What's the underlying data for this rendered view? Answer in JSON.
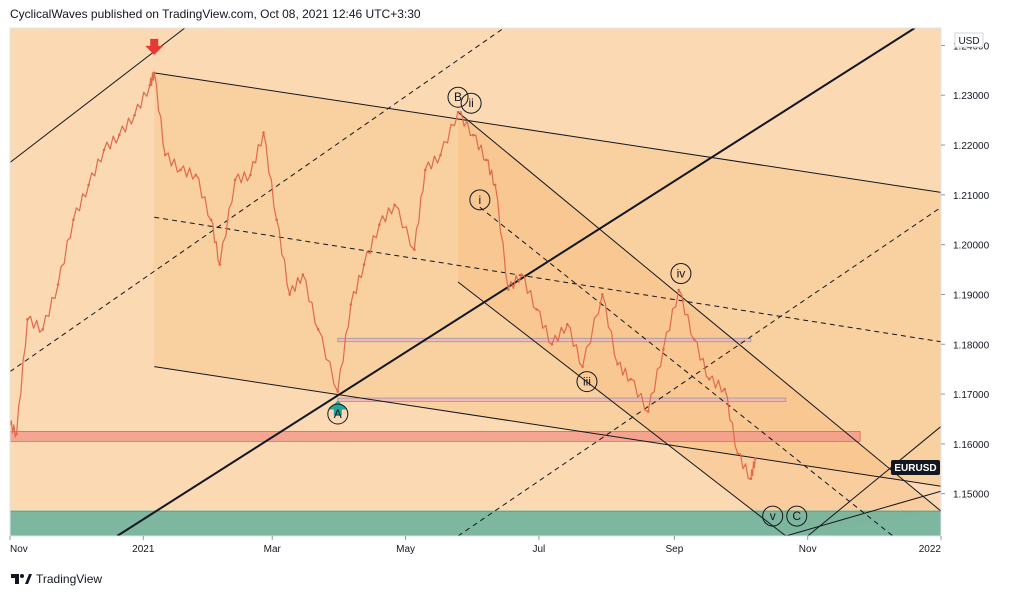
{
  "header": {
    "publisher_line": "CyclicalWaves published on TradingView.com, Oct 08, 2021 12:46 UTC+3:30"
  },
  "footer": {
    "brand": "TradingView",
    "logo_icon": "tradingview-logo-icon"
  },
  "symbol_badge": "EURUSD",
  "colors": {
    "background": "#fad9b3",
    "channel_fill": "#f8c98f",
    "price_line": "#e06a4a",
    "support_zone": "#f3998a",
    "bottom_zone": "#6fb39c",
    "arrow_down": "#e53935",
    "arrow_up": "#26a69a",
    "badge_bg": "#131722"
  },
  "chart_data": {
    "type": "line",
    "symbol": "EURUSD",
    "currency": "USD",
    "ylim": [
      1.1415,
      1.2435
    ],
    "xlim": [
      "2020-11-01",
      "2022-01-01"
    ],
    "y_ticks": [
      "1.24000",
      "1.23000",
      "1.22000",
      "1.21000",
      "1.20000",
      "1.19000",
      "1.18000",
      "1.17000",
      "1.16000",
      "1.15000"
    ],
    "y_tick_values": [
      1.24,
      1.23,
      1.22,
      1.21,
      1.2,
      1.19,
      1.18,
      1.17,
      1.16,
      1.15
    ],
    "x_ticks": [
      {
        "label": "Nov",
        "date": "2020-11-01"
      },
      {
        "label": "2021",
        "date": "2021-01-01"
      },
      {
        "label": "Mar",
        "date": "2021-03-01"
      },
      {
        "label": "May",
        "date": "2021-05-01"
      },
      {
        "label": "Jul",
        "date": "2021-07-01"
      },
      {
        "label": "Sep",
        "date": "2021-09-01"
      },
      {
        "label": "Nov",
        "date": "2021-11-01"
      },
      {
        "label": "2022",
        "date": "2022-01-01"
      }
    ],
    "price": [
      [
        "2020-11-01",
        1.164
      ],
      [
        "2020-11-04",
        1.162
      ],
      [
        "2020-11-09",
        1.185
      ],
      [
        "2020-11-16",
        1.183
      ],
      [
        "2020-11-23",
        1.192
      ],
      [
        "2020-11-30",
        1.205
      ],
      [
        "2020-12-07",
        1.212
      ],
      [
        "2020-12-14",
        1.219
      ],
      [
        "2020-12-21",
        1.222
      ],
      [
        "2020-12-28",
        1.226
      ],
      [
        "2021-01-04",
        1.232
      ],
      [
        "2021-01-06",
        1.2345
      ],
      [
        "2021-01-11",
        1.218
      ],
      [
        "2021-01-18",
        1.215
      ],
      [
        "2021-01-25",
        1.214
      ],
      [
        "2021-02-01",
        1.205
      ],
      [
        "2021-02-05",
        1.196
      ],
      [
        "2021-02-12",
        1.213
      ],
      [
        "2021-02-19",
        1.214
      ],
      [
        "2021-02-25",
        1.2225
      ],
      [
        "2021-03-03",
        1.205
      ],
      [
        "2021-03-09",
        1.19
      ],
      [
        "2021-03-15",
        1.194
      ],
      [
        "2021-03-22",
        1.183
      ],
      [
        "2021-03-31",
        1.1705
      ],
      [
        "2021-04-06",
        1.188
      ],
      [
        "2021-04-12",
        1.196
      ],
      [
        "2021-04-19",
        1.204
      ],
      [
        "2021-04-26",
        1.208
      ],
      [
        "2021-05-05",
        1.199
      ],
      [
        "2021-05-10",
        1.215
      ],
      [
        "2021-05-17",
        1.218
      ],
      [
        "2021-05-25",
        1.2266
      ],
      [
        "2021-06-01",
        1.222
      ],
      [
        "2021-06-07",
        1.217
      ],
      [
        "2021-06-11",
        1.212
      ],
      [
        "2021-06-17",
        1.191
      ],
      [
        "2021-06-23",
        1.194
      ],
      [
        "2021-06-30",
        1.187
      ],
      [
        "2021-07-07",
        1.18
      ],
      [
        "2021-07-14",
        1.184
      ],
      [
        "2021-07-21",
        1.1755
      ],
      [
        "2021-07-30",
        1.19
      ],
      [
        "2021-08-06",
        1.176
      ],
      [
        "2021-08-12",
        1.173
      ],
      [
        "2021-08-20",
        1.1665
      ],
      [
        "2021-08-27",
        1.179
      ],
      [
        "2021-09-03",
        1.1909
      ],
      [
        "2021-09-10",
        1.181
      ],
      [
        "2021-09-17",
        1.173
      ],
      [
        "2021-09-24",
        1.171
      ],
      [
        "2021-09-30",
        1.158
      ],
      [
        "2021-10-06",
        1.153
      ],
      [
        "2021-10-08",
        1.157
      ]
    ],
    "wave_labels": [
      {
        "text": "A",
        "date": "2021-03-31",
        "price": 1.166
      },
      {
        "text": "B",
        "date": "2021-05-25",
        "price": 1.2296
      },
      {
        "text": "ii",
        "date": "2021-05-31",
        "price": 1.2284
      },
      {
        "text": "i",
        "date": "2021-06-04",
        "price": 1.209
      },
      {
        "text": "iii",
        "date": "2021-07-23",
        "price": 1.1725
      },
      {
        "text": "iv",
        "date": "2021-09-04",
        "price": 1.1942
      },
      {
        "text": "v",
        "date": "2021-10-16",
        "price": 1.1455
      },
      {
        "text": "C",
        "date": "2021-10-27",
        "price": 1.1455
      }
    ],
    "markers": [
      {
        "type": "arrow-down",
        "date": "2021-01-06",
        "price": 1.2385
      },
      {
        "type": "arrow-up",
        "date": "2021-03-31",
        "price": 1.1685
      }
    ],
    "zones": [
      {
        "name": "support-zone",
        "from": "2020-11-01",
        "to": "2021-11-25",
        "low": 1.1605,
        "high": 1.1625
      },
      {
        "name": "bottom-zone",
        "from": "2020-11-01",
        "to": "2022-01-01",
        "low": 1.1415,
        "high": 1.1465
      },
      {
        "name": "resistance-line-upper",
        "from": "2021-03-31",
        "to": "2021-10-06",
        "low": 1.1805,
        "high": 1.1812
      },
      {
        "name": "resistance-line-lower",
        "from": "2021-03-31",
        "to": "2021-10-22",
        "low": 1.1685,
        "high": 1.1692
      }
    ],
    "lines": [
      {
        "name": "outer-channel-top",
        "style": "solid",
        "p1": [
          "2020-11-01",
          1.2165
        ],
        "p2": [
          "2021-01-20",
          1.2435
        ]
      },
      {
        "name": "big-channel-top",
        "style": "solid",
        "p1": [
          "2021-01-06",
          1.2345
        ],
        "p2": [
          "2022-01-01",
          1.2105
        ]
      },
      {
        "name": "big-channel-mid",
        "style": "dashed",
        "p1": [
          "2021-01-06",
          1.2055
        ],
        "p2": [
          "2022-01-01",
          1.1805
        ]
      },
      {
        "name": "big-channel-bottom",
        "style": "solid",
        "p1": [
          "2021-01-06",
          1.1755
        ],
        "p2": [
          "2022-01-01",
          1.1515
        ]
      },
      {
        "name": "rising-line-main",
        "style": "solid",
        "p1": [
          "2020-12-20",
          1.1415
        ],
        "p2": [
          "2021-12-20",
          1.2435
        ]
      },
      {
        "name": "rising-line-dashed-a",
        "style": "dashed",
        "p1": [
          "2020-11-01",
          1.1745
        ],
        "p2": [
          "2021-06-15",
          1.2435
        ]
      },
      {
        "name": "rising-line-dashed-b",
        "style": "dashed",
        "p1": [
          "2021-05-25",
          1.1415
        ],
        "p2": [
          "2022-01-01",
          1.2075
        ]
      },
      {
        "name": "falling-channel-top",
        "style": "solid",
        "p1": [
          "2021-05-25",
          1.2266
        ],
        "p2": [
          "2022-01-01",
          1.1465
        ]
      },
      {
        "name": "falling-channel-mid",
        "style": "dashed",
        "p1": [
          "2021-06-04",
          1.2075
        ],
        "p2": [
          "2021-12-10",
          1.1415
        ]
      },
      {
        "name": "falling-channel-bottom",
        "style": "solid",
        "p1": [
          "2021-05-25",
          1.1925
        ],
        "p2": [
          "2021-10-22",
          1.1415
        ]
      },
      {
        "name": "target-line-a",
        "style": "solid",
        "p1": [
          "2021-11-01",
          1.1415
        ],
        "p2": [
          "2022-01-01",
          1.1635
        ]
      },
      {
        "name": "target-line-b",
        "style": "solid",
        "p1": [
          "2021-10-22",
          1.1415
        ],
        "p2": [
          "2022-01-01",
          1.1505
        ]
      }
    ]
  }
}
